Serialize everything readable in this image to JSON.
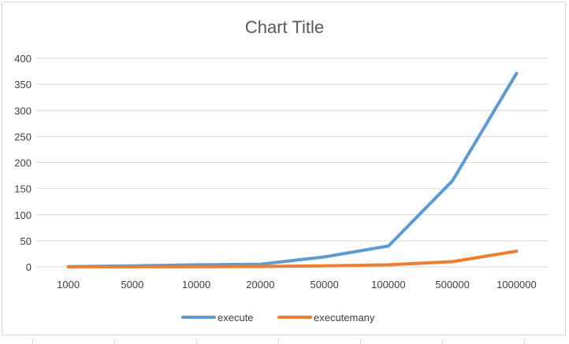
{
  "chart_data": {
    "type": "line",
    "title": "Chart Title",
    "categories": [
      "1000",
      "5000",
      "10000",
      "20000",
      "50000",
      "100000",
      "500000",
      "1000000"
    ],
    "series": [
      {
        "name": "execute",
        "color": "#5B9BD5",
        "values": [
          0.4,
          2,
          4,
          5,
          19,
          40,
          165,
          371
        ]
      },
      {
        "name": "executemany",
        "color": "#ED7D31",
        "values": [
          0.1,
          0.2,
          0.4,
          0.8,
          2,
          4,
          10,
          30
        ]
      }
    ],
    "ylim": [
      0,
      400
    ],
    "yticks": [
      0,
      50,
      100,
      150,
      200,
      250,
      300,
      350,
      400
    ],
    "grid": "horizontal",
    "legend_position": "bottom"
  }
}
